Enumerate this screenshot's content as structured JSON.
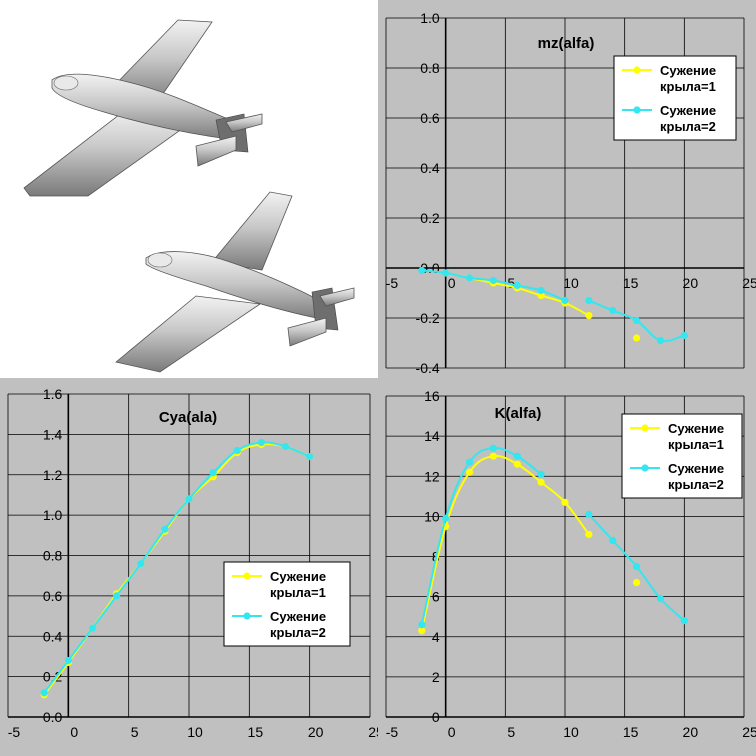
{
  "colors": {
    "series1": "#ffff00",
    "series2": "#33e6f0",
    "plot_background": "#c0c0c0",
    "grid": "#000000"
  },
  "illustration": {
    "icon": "airplane-models-illustration"
  },
  "chart_data": [
    {
      "id": "mz",
      "type": "line",
      "title": "mz(alfa)",
      "xlabel": "",
      "ylabel": "",
      "xlim": [
        -5,
        25
      ],
      "ylim": [
        -0.4,
        1.0
      ],
      "x_ticks": [
        "-5",
        "0",
        "5",
        "10",
        "15",
        "20",
        "25"
      ],
      "y_ticks": [
        "-0.4",
        "-0.2",
        "0.0",
        "0.2",
        "0.4",
        "0.6",
        "0.8",
        "1.0"
      ],
      "grid": true,
      "legend": "top-right",
      "series": [
        {
          "name": "Сужение крыла=1",
          "name_lines": [
            "Сужение",
            "крыла=1"
          ],
          "points": [
            [
              0,
              -0.02
            ],
            [
              2,
              -0.04
            ],
            [
              4,
              -0.06
            ],
            [
              6,
              -0.08
            ],
            [
              8,
              -0.11
            ],
            [
              10,
              -0.14
            ],
            [
              12,
              -0.19
            ],
            [
              16,
              -0.28
            ]
          ],
          "outliers": [
            16
          ]
        },
        {
          "name": "Сужение крыла=2",
          "name_lines": [
            "Сужение",
            "крыла=2"
          ],
          "points": [
            [
              -2,
              -0.01
            ],
            [
              0,
              -0.02
            ],
            [
              2,
              -0.04
            ],
            [
              4,
              -0.05
            ],
            [
              6,
              -0.07
            ],
            [
              8,
              -0.09
            ],
            [
              10,
              -0.13
            ],
            [
              12,
              -0.13
            ],
            [
              14,
              -0.17
            ],
            [
              16,
              -0.21
            ],
            [
              18,
              -0.29
            ],
            [
              20,
              -0.27
            ]
          ],
          "breaks": [
            10
          ]
        }
      ]
    },
    {
      "id": "cya",
      "type": "line",
      "title": "Cya(ala)",
      "xlabel": "",
      "ylabel": "",
      "xlim": [
        -5,
        25
      ],
      "ylim": [
        0.0,
        1.6
      ],
      "x_ticks": [
        "-5",
        "0",
        "5",
        "10",
        "15",
        "20",
        "25"
      ],
      "y_ticks": [
        "0.0",
        "0.2",
        "0.4",
        "0.6",
        "0.8",
        "1.0",
        "1.2",
        "1.4",
        "1.6"
      ],
      "grid": true,
      "legend": "bottom-right",
      "series": [
        {
          "name": "Сужение крыла=1",
          "name_lines": [
            "Сужение",
            "крыла=1"
          ],
          "points": [
            [
              -2,
              0.11
            ],
            [
              0,
              0.27
            ],
            [
              2,
              0.44
            ],
            [
              4,
              0.61
            ],
            [
              6,
              0.76
            ],
            [
              8,
              0.92
            ],
            [
              10,
              1.08
            ],
            [
              12,
              1.19
            ],
            [
              14,
              1.31
            ],
            [
              16,
              1.35
            ],
            [
              18,
              1.34
            ],
            [
              20,
              1.29
            ]
          ]
        },
        {
          "name": "Сужение крыла=2",
          "name_lines": [
            "Сужение",
            "крыла=2"
          ],
          "points": [
            [
              -2,
              0.12
            ],
            [
              0,
              0.28
            ],
            [
              2,
              0.44
            ],
            [
              4,
              0.6
            ],
            [
              6,
              0.76
            ],
            [
              8,
              0.93
            ],
            [
              10,
              1.08
            ],
            [
              12,
              1.21
            ],
            [
              14,
              1.32
            ],
            [
              16,
              1.36
            ],
            [
              18,
              1.34
            ],
            [
              20,
              1.29
            ]
          ]
        }
      ]
    },
    {
      "id": "k",
      "type": "line",
      "title": "K(alfa)",
      "xlabel": "",
      "ylabel": "",
      "xlim": [
        -5,
        25
      ],
      "ylim": [
        0,
        16
      ],
      "x_ticks": [
        "-5",
        "0",
        "5",
        "10",
        "15",
        "20",
        "25"
      ],
      "y_ticks": [
        "0",
        "2",
        "4",
        "6",
        "8",
        "10",
        "12",
        "14",
        "16"
      ],
      "grid": true,
      "legend": "top-right",
      "series": [
        {
          "name": "Сужение крыла=1",
          "name_lines": [
            "Сужение",
            "крыла=1"
          ],
          "points": [
            [
              -2,
              4.3
            ],
            [
              0,
              9.5
            ],
            [
              2,
              12.2
            ],
            [
              4,
              13.0
            ],
            [
              6,
              12.6
            ],
            [
              8,
              11.7
            ],
            [
              10,
              10.7
            ],
            [
              12,
              9.1
            ],
            [
              16,
              6.7
            ]
          ],
          "outliers": [
            16
          ]
        },
        {
          "name": "Сужение крыла=2",
          "name_lines": [
            "Сужение",
            "крыла=2"
          ],
          "points": [
            [
              -2,
              4.6
            ],
            [
              0,
              9.9
            ],
            [
              2,
              12.7
            ],
            [
              4,
              13.4
            ],
            [
              6,
              13.0
            ],
            [
              8,
              12.1
            ],
            [
              12,
              10.1
            ],
            [
              14,
              8.8
            ],
            [
              16,
              7.5
            ],
            [
              18,
              5.9
            ],
            [
              20,
              4.8
            ]
          ],
          "breaks": [
            8
          ]
        }
      ]
    }
  ]
}
